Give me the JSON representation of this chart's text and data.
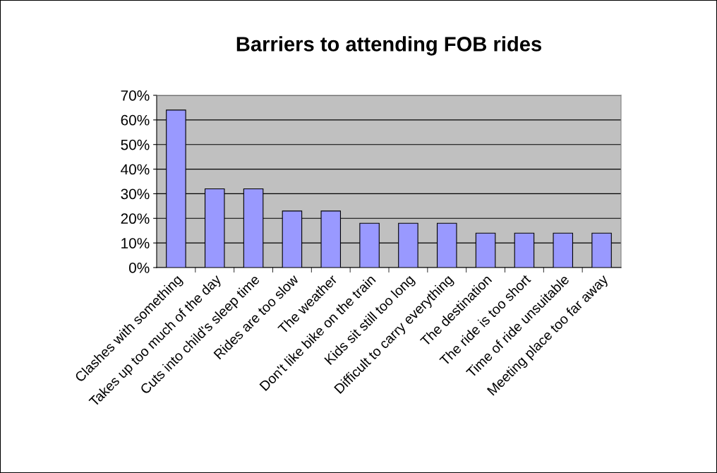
{
  "chart_data": {
    "type": "bar",
    "title": "Barriers to attending FOB rides",
    "categories": [
      "Clashes with something",
      "Takes up too much of the day",
      "Cuts into child's sleep time",
      "Rides are too slow",
      "The weather",
      "Don't like bike on the train",
      "Kids sit still too long",
      "Difficult to carry everything",
      "The destination",
      "The ride is too short",
      "Time of ride unsuitable",
      "Meeting place too far away"
    ],
    "values": [
      64,
      32,
      32,
      23,
      23,
      18,
      18,
      18,
      14,
      14,
      14,
      14
    ],
    "color": "#9999ff",
    "ylim": [
      0,
      70
    ],
    "yticks": [
      {
        "value": 0,
        "label": "0%"
      },
      {
        "value": 10,
        "label": "10%"
      },
      {
        "value": 20,
        "label": "20%"
      },
      {
        "value": 30,
        "label": "30%"
      },
      {
        "value": 40,
        "label": "40%"
      },
      {
        "value": 50,
        "label": "50%"
      },
      {
        "value": 60,
        "label": "60%"
      },
      {
        "value": 70,
        "label": "70%"
      }
    ],
    "grid": "y",
    "legend": false
  }
}
